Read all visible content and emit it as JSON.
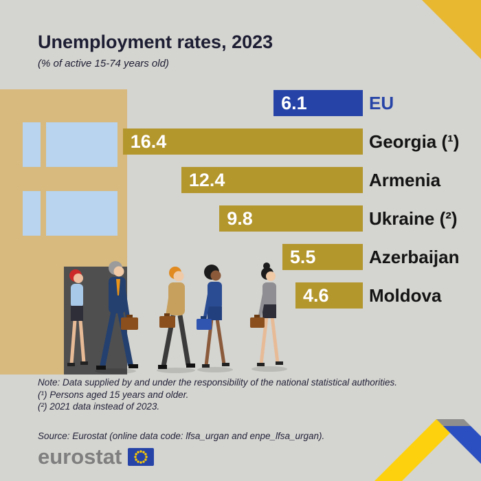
{
  "header": {
    "title": "Unemployment rates, 2023",
    "subtitle": "(% of active 15-74 years old)"
  },
  "chart_data": {
    "type": "bar",
    "orientation": "horizontal",
    "title": "Unemployment rates, 2023",
    "subtitle": "(% of active 15-74 years old)",
    "categories": [
      "EU",
      "Georgia (¹)",
      "Armenia",
      "Ukraine (²)",
      "Azerbaijan",
      "Moldova"
    ],
    "values": [
      6.1,
      16.4,
      12.4,
      9.8,
      5.5,
      4.6
    ],
    "xlim": [
      0,
      16.4
    ],
    "value_labels": "inside-left",
    "legend": "none",
    "bars": [
      {
        "label": "EU",
        "value": 6.1,
        "display": "6.1",
        "color": "#2644a7",
        "label_color": "#2644a7"
      },
      {
        "label": "Georgia (¹)",
        "value": 16.4,
        "display": "16.4",
        "color": "#b3962c",
        "label_color": "#141414"
      },
      {
        "label": "Armenia",
        "value": 12.4,
        "display": "12.4",
        "color": "#b3962c",
        "label_color": "#141414"
      },
      {
        "label": "Ukraine (²)",
        "value": 9.8,
        "display": "9.8",
        "color": "#b3962c",
        "label_color": "#141414"
      },
      {
        "label": "Azerbaijan",
        "value": 5.5,
        "display": "5.5",
        "color": "#b3962c",
        "label_color": "#141414"
      },
      {
        "label": "Moldova",
        "value": 4.6,
        "display": "4.6",
        "color": "#b3962c",
        "label_color": "#141414"
      }
    ]
  },
  "notes": {
    "line1": "Note: Data supplied by and under the responsibility of the national statistical authorities.",
    "line2": "(¹) Persons aged 15 years and older.",
    "line3": "(²) 2021 data instead of 2023."
  },
  "source": "Source: Eurostat  (online data code: lfsa_urgan and enpe_lfsa_urgan).",
  "logo": {
    "text": "eurostat"
  },
  "colors": {
    "background": "#d4d4d0",
    "gold_bar": "#b3962c",
    "eu_blue": "#2644a7",
    "corner_triangle": "#e9b831",
    "ribbon_yellow": "#fdd10e",
    "ribbon_gray": "#8f8f8d",
    "ribbon_blue": "#2b4fc0",
    "building": "#d8b97e",
    "window": "#b8d4ee"
  }
}
